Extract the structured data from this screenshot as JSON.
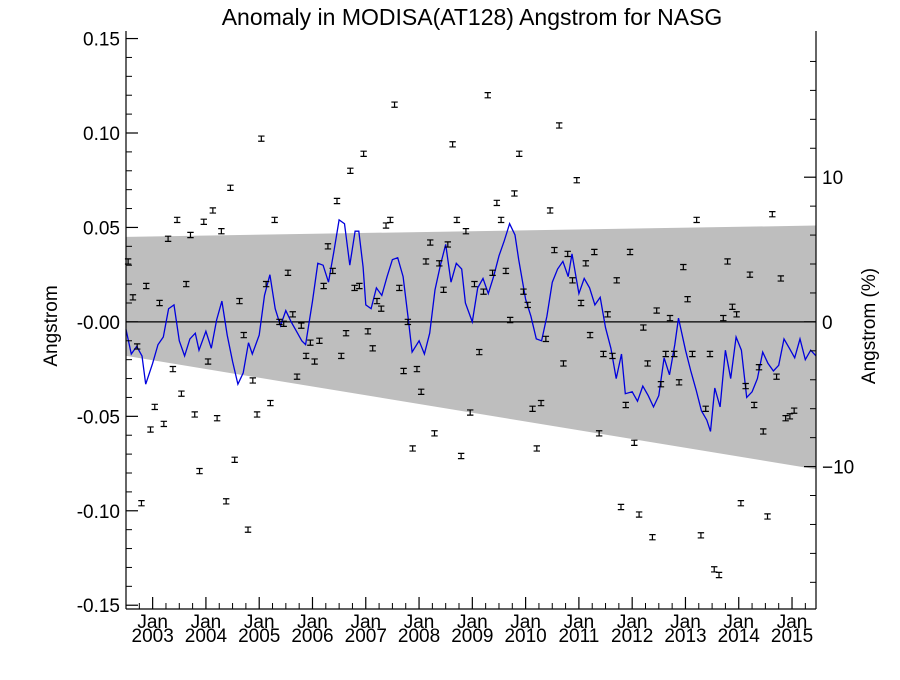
{
  "chart_data": {
    "type": "line",
    "title": "Anomaly in MODISA(AT128) Angstrom for NASG",
    "ylabel": "Angstrom",
    "ylabel_right": "Angstrom (%)",
    "xlabel": "",
    "ylim": [
      -0.152,
      0.154
    ],
    "xlim": [
      2002.5,
      2015.45
    ],
    "y_ticks": [
      0.15,
      0.1,
      0.05,
      0.0,
      -0.05,
      -0.1,
      -0.15
    ],
    "y_tick_labels": [
      "0.15",
      "0.10",
      "0.05",
      "-0.00",
      "-0.05",
      "-0.10",
      "-0.15"
    ],
    "y2_ticks": [
      10,
      0,
      -10
    ],
    "y2_tick_labels": [
      "10",
      "0",
      "−10"
    ],
    "y2_scale_per_percent": 0.00766,
    "x_ticks": [
      2003,
      2004,
      2005,
      2006,
      2007,
      2008,
      2009,
      2010,
      2011,
      2012,
      2013,
      2014,
      2015
    ],
    "x_tick_month_label": "Jan",
    "x_tick_year_labels": [
      "2003",
      "2004",
      "2005",
      "2006",
      "2007",
      "2008",
      "2009",
      "2010",
      "2011",
      "2012",
      "2013",
      "2014",
      "2015"
    ],
    "band": {
      "color": "#bebebe",
      "upper": [
        [
          2002.5,
          0.045
        ],
        [
          2015.45,
          0.051
        ]
      ],
      "lower": [
        [
          2002.5,
          -0.018
        ],
        [
          2015.45,
          -0.078
        ]
      ]
    },
    "zero_line": 0,
    "series": [
      {
        "kind": "errorbar-points",
        "color": "#000000",
        "points": [
          [
            2002.54,
            0.032
          ],
          [
            2002.63,
            0.013
          ],
          [
            2002.71,
            -0.013
          ],
          [
            2002.79,
            -0.096
          ],
          [
            2002.88,
            0.019
          ],
          [
            2002.96,
            -0.057
          ],
          [
            2003.04,
            -0.045
          ],
          [
            2003.13,
            0.01
          ],
          [
            2003.21,
            -0.054
          ],
          [
            2003.29,
            0.044
          ],
          [
            2003.38,
            -0.025
          ],
          [
            2003.46,
            0.054
          ],
          [
            2003.54,
            -0.038
          ],
          [
            2003.63,
            0.02
          ],
          [
            2003.71,
            0.046
          ],
          [
            2003.79,
            -0.049
          ],
          [
            2003.88,
            -0.079
          ],
          [
            2003.96,
            0.053
          ],
          [
            2004.04,
            -0.021
          ],
          [
            2004.13,
            0.059
          ],
          [
            2004.21,
            -0.051
          ],
          [
            2004.29,
            0.048
          ],
          [
            2004.38,
            -0.095
          ],
          [
            2004.46,
            0.071
          ],
          [
            2004.54,
            -0.073
          ],
          [
            2004.63,
            0.011
          ],
          [
            2004.71,
            -0.007
          ],
          [
            2004.79,
            -0.11
          ],
          [
            2004.88,
            -0.031
          ],
          [
            2004.96,
            -0.049
          ],
          [
            2005.04,
            0.097
          ],
          [
            2005.13,
            0.02
          ],
          [
            2005.21,
            -0.043
          ],
          [
            2005.29,
            0.054
          ],
          [
            2005.38,
            0.0
          ],
          [
            2005.46,
            -0.001
          ],
          [
            2005.54,
            0.026
          ],
          [
            2005.63,
            0.004
          ],
          [
            2005.71,
            -0.029
          ],
          [
            2005.79,
            -0.002
          ],
          [
            2005.88,
            -0.018
          ],
          [
            2005.96,
            -0.011
          ],
          [
            2006.04,
            -0.021
          ],
          [
            2006.13,
            -0.01
          ],
          [
            2006.21,
            0.019
          ],
          [
            2006.29,
            0.04
          ],
          [
            2006.38,
            0.027
          ],
          [
            2006.46,
            0.064
          ],
          [
            2006.54,
            -0.018
          ],
          [
            2006.63,
            -0.006
          ],
          [
            2006.71,
            0.08
          ],
          [
            2006.79,
            0.018
          ],
          [
            2006.88,
            0.019
          ],
          [
            2006.96,
            0.089
          ],
          [
            2007.04,
            -0.005
          ],
          [
            2007.13,
            -0.014
          ],
          [
            2007.21,
            0.011
          ],
          [
            2007.29,
            0.007
          ],
          [
            2007.38,
            0.051
          ],
          [
            2007.46,
            0.054
          ],
          [
            2007.54,
            0.115
          ],
          [
            2007.63,
            0.018
          ],
          [
            2007.71,
            -0.026
          ],
          [
            2007.79,
            0.0
          ],
          [
            2007.88,
            -0.067
          ],
          [
            2007.96,
            -0.025
          ],
          [
            2008.04,
            -0.037
          ],
          [
            2008.13,
            0.032
          ],
          [
            2008.21,
            0.042
          ],
          [
            2008.29,
            -0.059
          ],
          [
            2008.38,
            0.031
          ],
          [
            2008.46,
            0.017
          ],
          [
            2008.54,
            0.041
          ],
          [
            2008.63,
            0.094
          ],
          [
            2008.71,
            0.054
          ],
          [
            2008.79,
            -0.071
          ],
          [
            2008.88,
            0.048
          ],
          [
            2008.96,
            -0.048
          ],
          [
            2009.04,
            0.02
          ],
          [
            2009.13,
            -0.016
          ],
          [
            2009.21,
            0.016
          ],
          [
            2009.29,
            0.12
          ],
          [
            2009.38,
            0.026
          ],
          [
            2009.46,
            0.063
          ],
          [
            2009.54,
            0.054
          ],
          [
            2009.63,
            0.027
          ],
          [
            2009.71,
            0.001
          ],
          [
            2009.79,
            0.068
          ],
          [
            2009.88,
            0.089
          ],
          [
            2009.96,
            0.016
          ],
          [
            2010.04,
            0.009
          ],
          [
            2010.13,
            -0.046
          ],
          [
            2010.21,
            -0.067
          ],
          [
            2010.29,
            -0.043
          ],
          [
            2010.38,
            -0.009
          ],
          [
            2010.46,
            0.059
          ],
          [
            2010.54,
            0.038
          ],
          [
            2010.63,
            0.104
          ],
          [
            2010.71,
            -0.022
          ],
          [
            2010.79,
            0.036
          ],
          [
            2010.88,
            0.022
          ],
          [
            2010.96,
            0.075
          ],
          [
            2011.04,
            0.01
          ],
          [
            2011.13,
            0.031
          ],
          [
            2011.21,
            -0.007
          ],
          [
            2011.29,
            0.037
          ],
          [
            2011.38,
            -0.059
          ],
          [
            2011.46,
            -0.017
          ],
          [
            2011.54,
            0.004
          ],
          [
            2011.63,
            -0.018
          ],
          [
            2011.71,
            0.022
          ],
          [
            2011.79,
            -0.098
          ],
          [
            2011.88,
            -0.044
          ],
          [
            2011.96,
            0.037
          ],
          [
            2012.04,
            -0.064
          ],
          [
            2012.13,
            -0.102
          ],
          [
            2012.21,
            -0.003
          ],
          [
            2012.29,
            -0.022
          ],
          [
            2012.38,
            -0.114
          ],
          [
            2012.46,
            0.006
          ],
          [
            2012.54,
            -0.033
          ],
          [
            2012.63,
            -0.017
          ],
          [
            2012.71,
            0.002
          ],
          [
            2012.79,
            -0.017
          ],
          [
            2012.88,
            -0.032
          ],
          [
            2012.96,
            0.029
          ],
          [
            2013.04,
            0.012
          ],
          [
            2013.13,
            -0.017
          ],
          [
            2013.21,
            0.054
          ],
          [
            2013.29,
            -0.113
          ],
          [
            2013.38,
            -0.046
          ],
          [
            2013.46,
            -0.017
          ],
          [
            2013.54,
            -0.131
          ],
          [
            2013.63,
            -0.134
          ],
          [
            2013.71,
            0.002
          ],
          [
            2013.79,
            0.032
          ],
          [
            2013.88,
            0.008
          ],
          [
            2013.96,
            0.004
          ],
          [
            2014.04,
            -0.096
          ],
          [
            2014.13,
            -0.034
          ],
          [
            2014.21,
            0.025
          ],
          [
            2014.29,
            -0.044
          ],
          [
            2014.38,
            -0.024
          ],
          [
            2014.46,
            -0.058
          ],
          [
            2014.54,
            -0.103
          ],
          [
            2014.63,
            0.057
          ],
          [
            2014.71,
            -0.029
          ],
          [
            2014.79,
            0.023
          ],
          [
            2014.88,
            -0.051
          ],
          [
            2014.96,
            -0.05
          ],
          [
            2015.04,
            -0.047
          ]
        ]
      },
      {
        "kind": "line",
        "color": "#0000dd",
        "points": [
          [
            2002.5,
            -0.004
          ],
          [
            2002.6,
            -0.017
          ],
          [
            2002.7,
            -0.013
          ],
          [
            2002.8,
            -0.018
          ],
          [
            2002.87,
            -0.033
          ],
          [
            2003.0,
            -0.022
          ],
          [
            2003.1,
            -0.012
          ],
          [
            2003.2,
            -0.008
          ],
          [
            2003.3,
            0.007
          ],
          [
            2003.4,
            0.009
          ],
          [
            2003.5,
            -0.01
          ],
          [
            2003.6,
            -0.018
          ],
          [
            2003.7,
            -0.009
          ],
          [
            2003.8,
            -0.006
          ],
          [
            2003.87,
            -0.015
          ],
          [
            2004.0,
            -0.005
          ],
          [
            2004.1,
            -0.014
          ],
          [
            2004.2,
            0.001
          ],
          [
            2004.3,
            0.011
          ],
          [
            2004.4,
            -0.007
          ],
          [
            2004.5,
            -0.021
          ],
          [
            2004.6,
            -0.033
          ],
          [
            2004.7,
            -0.027
          ],
          [
            2004.8,
            -0.011
          ],
          [
            2004.87,
            -0.017
          ],
          [
            2005.0,
            -0.007
          ],
          [
            2005.1,
            0.014
          ],
          [
            2005.2,
            0.025
          ],
          [
            2005.3,
            0.007
          ],
          [
            2005.4,
            -0.002
          ],
          [
            2005.5,
            0.006
          ],
          [
            2005.6,
            0.0
          ],
          [
            2005.7,
            -0.005
          ],
          [
            2005.8,
            -0.01
          ],
          [
            2005.87,
            -0.012
          ],
          [
            2006.0,
            0.011
          ],
          [
            2006.1,
            0.031
          ],
          [
            2006.2,
            0.03
          ],
          [
            2006.3,
            0.021
          ],
          [
            2006.4,
            0.037
          ],
          [
            2006.5,
            0.054
          ],
          [
            2006.6,
            0.052
          ],
          [
            2006.7,
            0.03
          ],
          [
            2006.8,
            0.048
          ],
          [
            2006.87,
            0.048
          ],
          [
            2006.95,
            0.029
          ],
          [
            2007.0,
            0.009
          ],
          [
            2007.1,
            0.007
          ],
          [
            2007.2,
            0.018
          ],
          [
            2007.3,
            0.014
          ],
          [
            2007.4,
            0.024
          ],
          [
            2007.5,
            0.033
          ],
          [
            2007.6,
            0.034
          ],
          [
            2007.7,
            0.024
          ],
          [
            2007.8,
            0.001
          ],
          [
            2007.87,
            -0.016
          ],
          [
            2008.0,
            -0.01
          ],
          [
            2008.1,
            -0.017
          ],
          [
            2008.2,
            -0.006
          ],
          [
            2008.3,
            0.017
          ],
          [
            2008.4,
            0.03
          ],
          [
            2008.5,
            0.041
          ],
          [
            2008.6,
            0.021
          ],
          [
            2008.7,
            0.031
          ],
          [
            2008.8,
            0.028
          ],
          [
            2008.87,
            0.01
          ],
          [
            2009.0,
            0.0
          ],
          [
            2009.1,
            0.018
          ],
          [
            2009.2,
            0.023
          ],
          [
            2009.3,
            0.015
          ],
          [
            2009.4,
            0.024
          ],
          [
            2009.5,
            0.035
          ],
          [
            2009.6,
            0.043
          ],
          [
            2009.7,
            0.052
          ],
          [
            2009.8,
            0.046
          ],
          [
            2009.87,
            0.033
          ],
          [
            2010.0,
            0.012
          ],
          [
            2010.1,
            0.003
          ],
          [
            2010.2,
            -0.009
          ],
          [
            2010.3,
            -0.01
          ],
          [
            2010.4,
            0.003
          ],
          [
            2010.5,
            0.021
          ],
          [
            2010.6,
            0.028
          ],
          [
            2010.7,
            0.032
          ],
          [
            2010.8,
            0.024
          ],
          [
            2010.87,
            0.036
          ],
          [
            2011.0,
            0.015
          ],
          [
            2011.1,
            0.023
          ],
          [
            2011.2,
            0.018
          ],
          [
            2011.3,
            0.009
          ],
          [
            2011.4,
            0.013
          ],
          [
            2011.5,
            -0.003
          ],
          [
            2011.6,
            -0.014
          ],
          [
            2011.7,
            -0.03
          ],
          [
            2011.8,
            -0.017
          ],
          [
            2011.87,
            -0.038
          ],
          [
            2012.0,
            -0.037
          ],
          [
            2012.1,
            -0.042
          ],
          [
            2012.2,
            -0.034
          ],
          [
            2012.3,
            -0.039
          ],
          [
            2012.4,
            -0.045
          ],
          [
            2012.5,
            -0.039
          ],
          [
            2012.6,
            -0.019
          ],
          [
            2012.7,
            -0.028
          ],
          [
            2012.8,
            -0.012
          ],
          [
            2012.87,
            0.002
          ],
          [
            2013.0,
            -0.015
          ],
          [
            2013.1,
            -0.026
          ],
          [
            2013.2,
            -0.036
          ],
          [
            2013.3,
            -0.047
          ],
          [
            2013.4,
            -0.052
          ],
          [
            2013.47,
            -0.058
          ],
          [
            2013.55,
            -0.035
          ],
          [
            2013.65,
            -0.045
          ],
          [
            2013.75,
            -0.015
          ],
          [
            2013.85,
            -0.03
          ],
          [
            2013.95,
            -0.008
          ],
          [
            2014.05,
            -0.015
          ],
          [
            2014.15,
            -0.04
          ],
          [
            2014.25,
            -0.037
          ],
          [
            2014.35,
            -0.03
          ],
          [
            2014.45,
            -0.016
          ],
          [
            2014.55,
            -0.022
          ],
          [
            2014.65,
            -0.026
          ],
          [
            2014.75,
            -0.023
          ],
          [
            2014.85,
            -0.009
          ],
          [
            2014.95,
            -0.014
          ],
          [
            2015.05,
            -0.019
          ],
          [
            2015.15,
            -0.009
          ],
          [
            2015.25,
            -0.02
          ],
          [
            2015.35,
            -0.015
          ],
          [
            2015.45,
            -0.018
          ]
        ]
      }
    ],
    "grid": false,
    "legend": "none"
  }
}
